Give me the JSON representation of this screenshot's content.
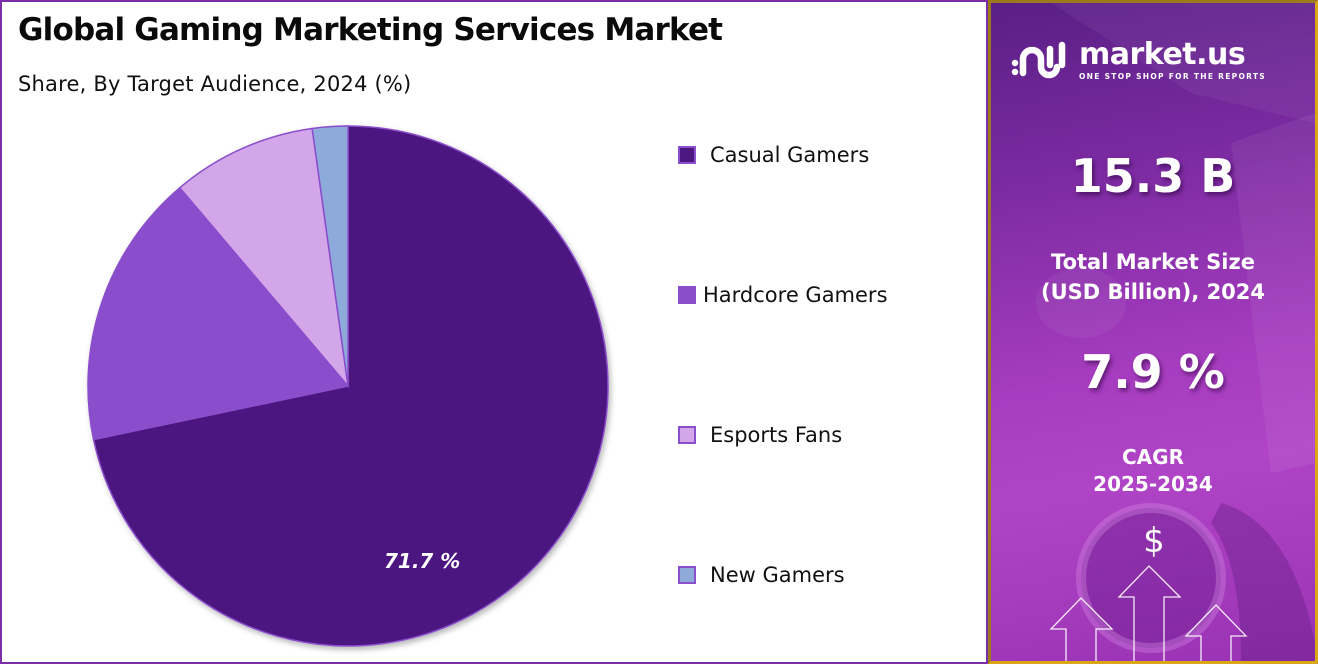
{
  "chart": {
    "title": "Global Gaming Marketing Services Market",
    "subtitle": "Share, By Target Audience, 2024 (%)",
    "slice_label": "71.7 %",
    "legend": [
      {
        "label": "Casual Gamers",
        "color": "#4c1780"
      },
      {
        "label": "Hardcore Gamers",
        "color": "#8a4ecb"
      },
      {
        "label": "Esports Fans",
        "color": "#d3a6ea"
      },
      {
        "label": "New Gamers",
        "color": "#8eaadb"
      }
    ]
  },
  "chart_data": {
    "type": "pie",
    "title": "Global Gaming Marketing Services Market",
    "subtitle": "Share, By Target Audience, 2024 (%)",
    "categories": [
      "Casual Gamers",
      "Hardcore Gamers",
      "Esports Fans",
      "New Gamers"
    ],
    "values": [
      71.7,
      17.1,
      9.0,
      2.2
    ],
    "colors": [
      "#4c1780",
      "#8a4ecb",
      "#d3a6ea",
      "#8eaadb"
    ],
    "data_labels": [
      "71.7 %"
    ],
    "start_angle": "12 o'clock",
    "direction": "clockwise",
    "legend_position": "right"
  },
  "info_panel": {
    "brand_name": "market.us",
    "brand_tagline": "ONE STOP SHOP FOR THE REPORTS",
    "market_size_value": "15.3 B",
    "market_size_caption_line1": "Total Market Size",
    "market_size_caption_line2": "(USD Billion), 2024",
    "cagr_value": "7.9 %",
    "cagr_caption_line1": "CAGR",
    "cagr_caption_line2": "2025-2034",
    "currency_symbol": "$"
  },
  "colors": {
    "panel_border": "#7b2fa8",
    "info_border": "#d9a718",
    "info_bg": "#a63cbf"
  }
}
